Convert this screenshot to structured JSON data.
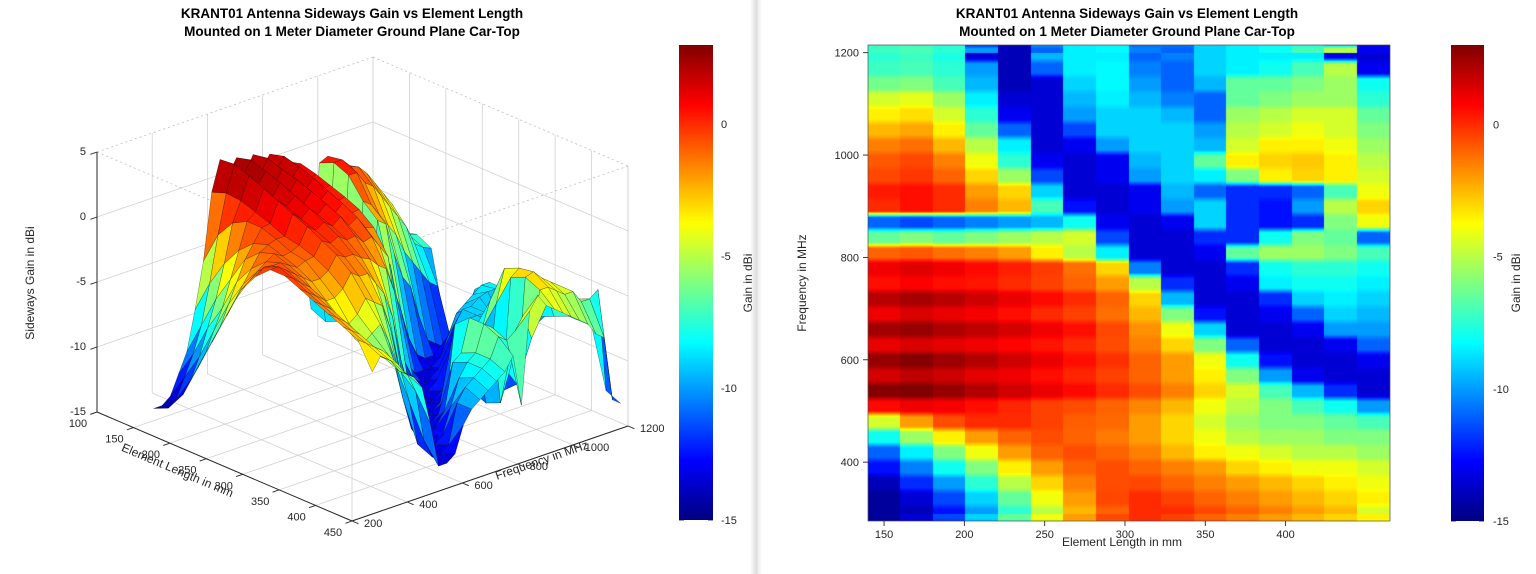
{
  "left_figure": {
    "title_line1": "KRANT01 Antenna Sideways Gain vs Element Length",
    "title_line2": "Mounted on 1 Meter Diameter Ground Plane Car-Top",
    "xlabel": "Element Length in mm",
    "ylabel": "Frequency in MHz",
    "zlabel": "Sideways Gain in dBi",
    "x_ticks": [
      100,
      150,
      200,
      250,
      300,
      350,
      400,
      450
    ],
    "y_ticks": [
      200,
      400,
      600,
      800,
      1000,
      1200
    ],
    "z_ticks": [
      5,
      0,
      -5,
      -10,
      -15
    ],
    "colorbar": {
      "label": "Gain in dBi",
      "ticks": [
        0,
        -5,
        -10,
        -15
      ]
    }
  },
  "right_figure": {
    "title_line1": "KRANT01 Antenna Sideways Gain vs Element Length",
    "title_line2": "Mounted on 1 Meter Diameter Ground Plane Car-Top",
    "xlabel": "Element Length in mm",
    "ylabel": "Frequency in MHz",
    "x_ticks": [
      150,
      200,
      250,
      300,
      350,
      400
    ],
    "y_ticks": [
      400,
      600,
      800,
      1000,
      1200
    ],
    "colorbar": {
      "label": "Gain in dBi",
      "ticks": [
        0,
        -5,
        -10,
        -15
      ]
    }
  },
  "chart_data": [
    {
      "type": "surface",
      "title": "KRANT01 Antenna Sideways Gain vs Element Length",
      "subtitle": "Mounted on 1 Meter Diameter Ground Plane Car-Top",
      "xlabel": "Element Length in mm",
      "ylabel": "Frequency in MHz",
      "zlabel": "Sideways Gain in dBi",
      "x_range_mm": [
        100,
        450
      ],
      "y_range_mhz": [
        200,
        1200
      ],
      "z_range_dbi": [
        -15,
        5
      ],
      "x_ticks": [
        100,
        150,
        200,
        250,
        300,
        350,
        400,
        450
      ],
      "y_ticks": [
        200,
        400,
        600,
        800,
        1000,
        1200
      ],
      "z_ticks": [
        5,
        0,
        -5,
        -10,
        -15
      ],
      "colormap": "jet",
      "color_range_dbi": [
        -15,
        3
      ],
      "colorbar_label": "Gain in dBi",
      "colorbar_ticks": [
        0,
        -5,
        -10,
        -15
      ],
      "grid": "on",
      "values_ref": "same dataset as chart_data[1].values_dbi"
    },
    {
      "type": "heatmap",
      "title": "KRANT01 Antenna Sideways Gain vs Element Length",
      "subtitle": "Mounted on 1 Meter Diameter Ground Plane Car-Top",
      "xlabel": "Element Length in mm",
      "ylabel": "Frequency in MHz",
      "x_ticks": [
        150,
        200,
        250,
        300,
        350,
        400
      ],
      "y_ticks": [
        400,
        600,
        800,
        1000,
        1200
      ],
      "colormap": "jet",
      "color_range_dbi": [
        -15,
        3
      ],
      "colorbar_label": "Gain in dBi",
      "colorbar_ticks": [
        0,
        -5,
        -10,
        -15
      ],
      "x_centers_mm": [
        140,
        160,
        180,
        200,
        220,
        240,
        260,
        280,
        300,
        320,
        340,
        360,
        380,
        400,
        420,
        440
      ],
      "y_centers_mhz": [
        1200,
        1170,
        1140,
        1110,
        1080,
        1050,
        1020,
        990,
        960,
        930,
        900,
        870,
        840,
        810,
        780,
        750,
        720,
        690,
        660,
        630,
        600,
        570,
        540,
        510,
        480,
        450,
        420,
        390,
        360,
        330,
        300
      ],
      "values_dbi": [
        [
          -7.5,
          -7.2,
          -7.8,
          -13.5,
          -14,
          -9.5,
          -8.5,
          -8.5,
          -11,
          -10.5,
          -9,
          -8.5,
          -8.5,
          -8.5,
          -13,
          -13.5
        ],
        [
          -7.2,
          -7,
          -7.5,
          -10,
          -14,
          -11,
          -8.5,
          -8.3,
          -10.5,
          -11,
          -9,
          -8.5,
          -8,
          -7,
          -5,
          -13
        ],
        [
          -6.2,
          -6,
          -7,
          -9.5,
          -14,
          -13.5,
          -9,
          -8.3,
          -10,
          -11,
          -9.5,
          -6.5,
          -6.5,
          -6,
          -5.5,
          -8
        ],
        [
          -4.5,
          -4.2,
          -5.5,
          -8.5,
          -13.5,
          -13.5,
          -9.5,
          -8.5,
          -9.5,
          -10.5,
          -11,
          -6.5,
          -6,
          -5.5,
          -5.5,
          -7.5
        ],
        [
          -3.5,
          -3.2,
          -4.5,
          -7.5,
          -13,
          -13.5,
          -10,
          -9,
          -9,
          -9.5,
          -11,
          -5.5,
          -5,
          -4.5,
          -4.5,
          -6.5
        ],
        [
          -2.5,
          -2.2,
          -3.5,
          -6.5,
          -11,
          -13.5,
          -11.5,
          -9,
          -9,
          -9,
          -10,
          -5,
          -4.5,
          -4,
          -4.5,
          -6
        ],
        [
          -1.5,
          -1.2,
          -2.5,
          -5,
          -8.5,
          -13.5,
          -13,
          -10,
          -9,
          -9,
          -9.5,
          -4.5,
          -3.5,
          -3.5,
          -4,
          -5.5
        ],
        [
          -0.8,
          -0.5,
          -1.5,
          -4,
          -7.5,
          -13,
          -13.5,
          -13,
          -9.5,
          -9,
          -6.5,
          -3.5,
          -3,
          -2.8,
          -3.5,
          -5
        ],
        [
          -0.5,
          -0.2,
          -1,
          -3,
          -5.5,
          -11.5,
          -13.5,
          -13,
          -10,
          -9,
          -8.5,
          -6,
          -3.5,
          -3,
          -3.5,
          -4.5
        ],
        [
          0.3,
          0.5,
          0,
          -2,
          -3,
          -9,
          -13.5,
          -13.5,
          -13,
          -9.5,
          -11,
          -12,
          -12,
          -11,
          -7,
          -4
        ],
        [
          0,
          0.5,
          0,
          -1.5,
          -2.5,
          -7,
          -12.5,
          -13.5,
          -13,
          -10,
          -9,
          -12,
          -12.5,
          -10,
          -5,
          -3
        ],
        [
          -11,
          -11.5,
          -11,
          -10.5,
          -10,
          -9.5,
          -8,
          -13,
          -13.5,
          -13,
          -9,
          -12,
          -12.5,
          -12,
          -6,
          -4
        ],
        [
          -6.5,
          -6,
          -6.5,
          -6,
          -5.5,
          -5,
          -4.5,
          -11.5,
          -13.5,
          -13.5,
          -12,
          -12,
          -8,
          -6,
          -6.5,
          -11
        ],
        [
          -1,
          -0.8,
          -1.2,
          -1.5,
          -2,
          -3.5,
          -5,
          -8.5,
          -13.5,
          -13.5,
          -13,
          -6.5,
          -5.5,
          -5.5,
          -6,
          -7
        ],
        [
          1,
          1.3,
          1,
          0.6,
          0.2,
          -0.3,
          -1.2,
          -3,
          -10.5,
          -13.5,
          -13.5,
          -12,
          -8,
          -7.5,
          -7.5,
          -8
        ],
        [
          0.5,
          0.8,
          0.5,
          0.4,
          0,
          -0.4,
          -1,
          -2,
          -5,
          -12,
          -13.5,
          -13,
          -8.5,
          -8,
          -8,
          -8.5
        ],
        [
          2,
          2.3,
          2,
          1.6,
          1.1,
          0.6,
          0,
          -1,
          -3,
          -9.5,
          -13.5,
          -13.5,
          -12,
          -9,
          -8.5,
          -9
        ],
        [
          1,
          1.4,
          1.1,
          0.9,
          0.5,
          0,
          -0.4,
          -1.2,
          -2.5,
          -6,
          -12.5,
          -13.5,
          -13,
          -11,
          -9,
          -9.5
        ],
        [
          2.4,
          2.6,
          2.2,
          1.9,
          1.5,
          1,
          0.5,
          -0.5,
          -1.8,
          -4,
          -9,
          -13.5,
          -13.5,
          -13,
          -10,
          -10
        ],
        [
          1.1,
          1.4,
          1.2,
          1,
          0.7,
          0.4,
          0,
          -0.6,
          -1.5,
          -3,
          -6,
          -11,
          -13.5,
          -13.5,
          -13,
          -11
        ],
        [
          2.6,
          2.9,
          2.5,
          2.1,
          1.6,
          1.1,
          0.5,
          -0.1,
          -1,
          -2,
          -4,
          -8,
          -12.5,
          -13.5,
          -13.5,
          -13
        ],
        [
          1.5,
          1.9,
          1.6,
          1.2,
          1,
          0.5,
          0.1,
          -0.4,
          -1,
          -2,
          -3.5,
          -6,
          -10,
          -13,
          -13.5,
          -13.5
        ],
        [
          2.9,
          3,
          2.6,
          2.1,
          1.6,
          1.1,
          0.6,
          0,
          -0.6,
          -1.5,
          -3,
          -4.5,
          -7,
          -9.5,
          -12,
          -13.5
        ],
        [
          0.6,
          1,
          0.9,
          0.5,
          0.1,
          -0.4,
          -0.6,
          -1,
          -1.6,
          -2.5,
          -4,
          -5,
          -6,
          -7,
          -8,
          -10
        ],
        [
          -4.5,
          -2,
          -0.6,
          0,
          0,
          -0.4,
          -0.9,
          -1.1,
          -2,
          -3,
          -4.5,
          -5.5,
          -6,
          -6,
          -6.5,
          -7
        ],
        [
          -8,
          -5.5,
          -3.5,
          -2,
          -1,
          -0.6,
          -1,
          -1.4,
          -2,
          -3,
          -4,
          -5,
          -5.5,
          -5.5,
          -6,
          -6
        ],
        [
          -11,
          -8.5,
          -6,
          -4,
          -2,
          -1,
          -0.6,
          -1,
          -1.5,
          -2.5,
          -3.5,
          -4,
          -4.5,
          -5,
          -5,
          -5.5
        ],
        [
          -12.5,
          -10.5,
          -8,
          -6,
          -3.5,
          -2,
          -1,
          -0.6,
          -1,
          -1.5,
          -2,
          -3,
          -3.5,
          -4,
          -4,
          -4.5
        ],
        [
          -14,
          -12,
          -10,
          -7.5,
          -5,
          -3,
          -1.5,
          -0.6,
          -0.5,
          -1,
          -1.5,
          -2,
          -2.5,
          -3,
          -3.5,
          -4
        ],
        [
          -14.5,
          -13.5,
          -11.5,
          -9,
          -6.5,
          -4,
          -2,
          -0.5,
          0,
          -0.4,
          -1,
          -1.5,
          -2,
          -2.5,
          -3,
          -3.5
        ],
        [
          -14.5,
          -14,
          -12.5,
          -10,
          -7.5,
          -5,
          -2.5,
          -1,
          0,
          0,
          -0.5,
          -1,
          -1.5,
          -2,
          -2.5,
          -4.5
        ]
      ]
    }
  ]
}
